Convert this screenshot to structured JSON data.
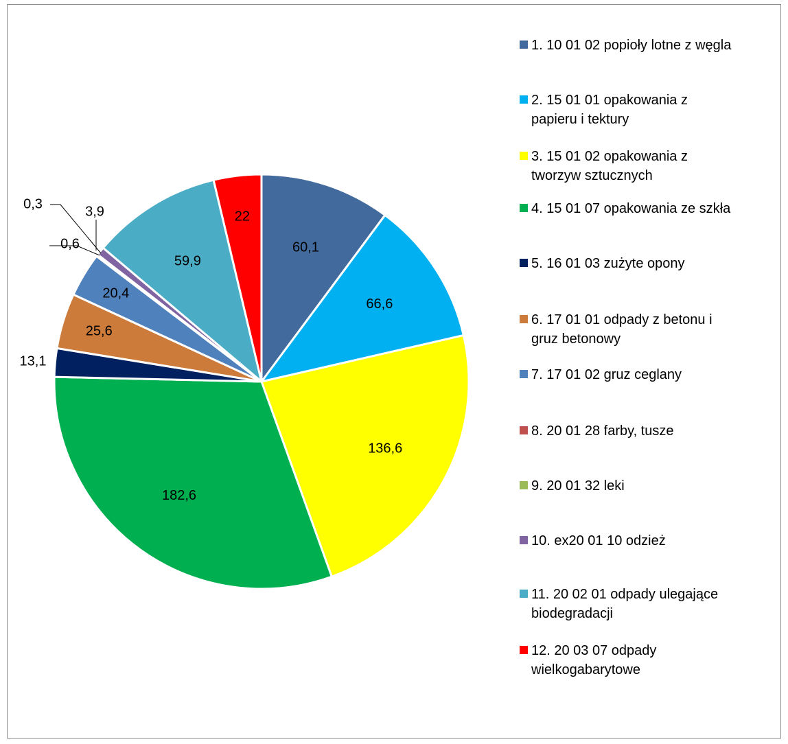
{
  "chart_data": {
    "type": "pie",
    "slices": [
      {
        "label": "1. 10 01 02 popioły lotne z węgla",
        "value": 60.1,
        "value_label": "60,1",
        "color": "#426a9c"
      },
      {
        "label": "2. 15 01 01 opakowania z papieru i tektury",
        "value": 66.6,
        "value_label": "66,6",
        "color": "#00b0f0"
      },
      {
        "label": "3. 15 01 02 opakowania z tworzyw sztucznych",
        "value": 136.6,
        "value_label": "136,6",
        "color": "#ffff00"
      },
      {
        "label": "4. 15 01 07 opakowania ze szkła",
        "value": 182.6,
        "value_label": "182,6",
        "color": "#00b050"
      },
      {
        "label": "5. 16 01 03 zużyte opony",
        "value": 13.1,
        "value_label": "13,1",
        "color": "#002060"
      },
      {
        "label": "6. 17 01 01 odpady z betonu i gruz betonowy",
        "value": 25.6,
        "value_label": "25,6",
        "color": "#cd7b3a"
      },
      {
        "label": "7. 17 01 02 gruz ceglany",
        "value": 20.4,
        "value_label": "20,4",
        "color": "#4f81bd"
      },
      {
        "label": "8. 20 01 28 farby, tusze",
        "value": 0.6,
        "value_label": "0,6",
        "color": "#c0504d"
      },
      {
        "label": "9. 20 01 32 leki",
        "value": 0.3,
        "value_label": "0,3",
        "color": "#9bbb59"
      },
      {
        "label": "10. ex20 01 10 odzież",
        "value": 3.9,
        "value_label": "3,9",
        "color": "#8064a2"
      },
      {
        "label": "11. 20 02 01 odpady ulegające biodegradacji",
        "value": 59.9,
        "value_label": "59,9",
        "color": "#4bacc6"
      },
      {
        "label": "12. 20 03 07 odpady wielkogabarytowe",
        "value": 22,
        "value_label": "22",
        "color": "#ff0000"
      }
    ],
    "legend": {
      "position": "right",
      "lines": [
        [
          "1. 10 01 02 popioły lotne z węgla"
        ],
        [
          "2. 15 01 01 opakowania z",
          "papieru i tektury"
        ],
        [
          "3. 15 01 02 opakowania z",
          "tworzyw sztucznych"
        ],
        [
          "4. 15 01 07 opakowania ze szkła"
        ],
        [
          "5. 16 01 03 zużyte opony"
        ],
        [
          "6. 17 01 01 odpady z betonu i",
          "gruz betonowy"
        ],
        [
          "7. 17 01 02 gruz ceglany"
        ],
        [
          "8. 20 01 28 farby, tusze"
        ],
        [
          "9. 20 01 32 leki"
        ],
        [
          "10. ex20 01 10 odzież"
        ],
        [
          "11. 20 02 01 odpady ulegające",
          "biodegradacji"
        ],
        [
          "12. 20 03 07 odpady",
          "wielkogabarytowe"
        ]
      ]
    }
  }
}
